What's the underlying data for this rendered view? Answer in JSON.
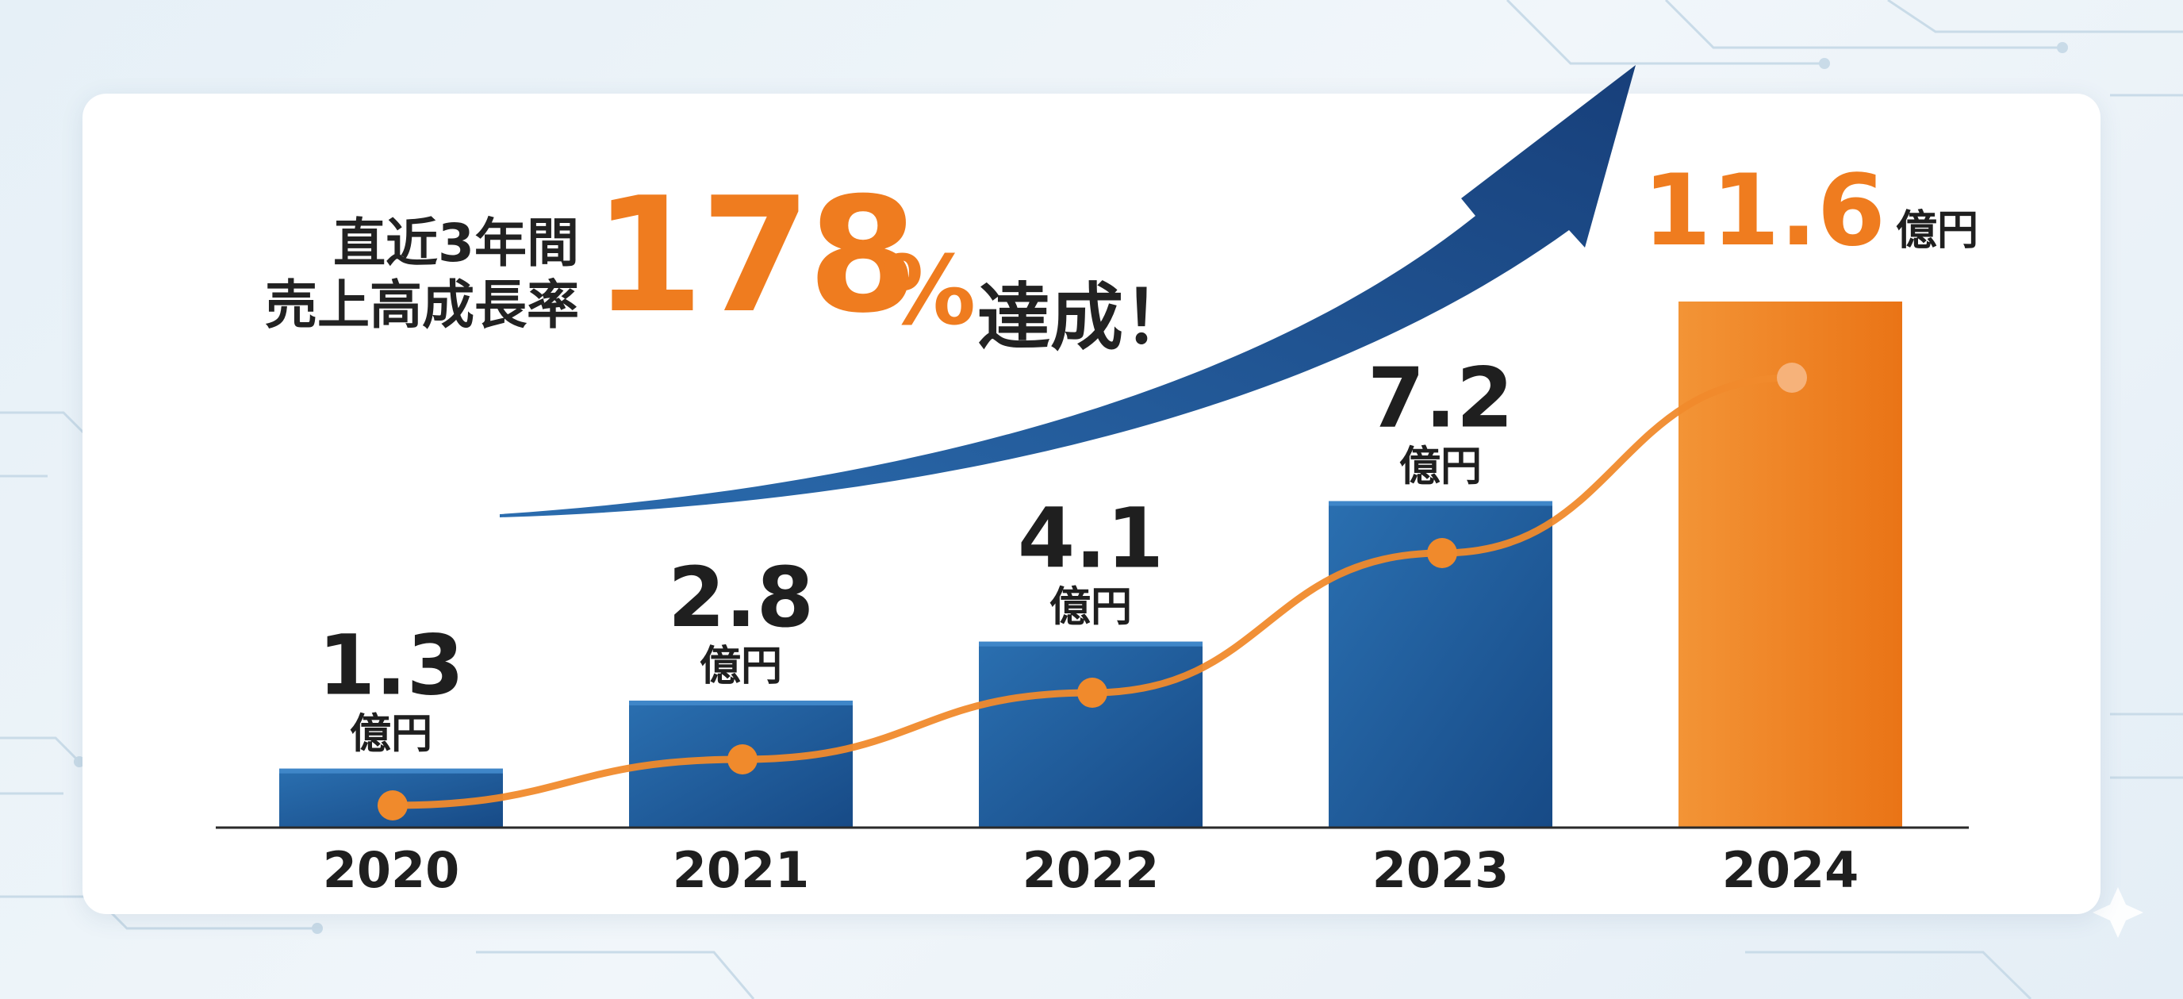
{
  "headline": {
    "line1": "直近3年間",
    "line2": "売上高成長率",
    "rate_number": "178",
    "rate_percent": "%",
    "suffix": "達成！"
  },
  "colors": {
    "bar": "#1f5d9c",
    "bar_highlight": "#ef7c1f",
    "line": "#f08a2c",
    "arrow": "#1b4a86",
    "text": "#1f1f1f"
  },
  "chart_data": {
    "type": "bar",
    "categories": [
      "2020",
      "2021",
      "2022",
      "2023",
      "2024"
    ],
    "series": [
      {
        "values": [
          1.3,
          2.8,
          4.1,
          7.2,
          11.6
        ]
      }
    ],
    "value_labels": [
      "1.3",
      "2.8",
      "4.1",
      "7.2",
      "11.6"
    ],
    "unit": "億円",
    "highlight_index": 4,
    "overlay_line": true,
    "title": "",
    "xlabel": "",
    "ylabel": "",
    "ylim": [
      0,
      12.3
    ],
    "grid": false,
    "legend": "none"
  }
}
